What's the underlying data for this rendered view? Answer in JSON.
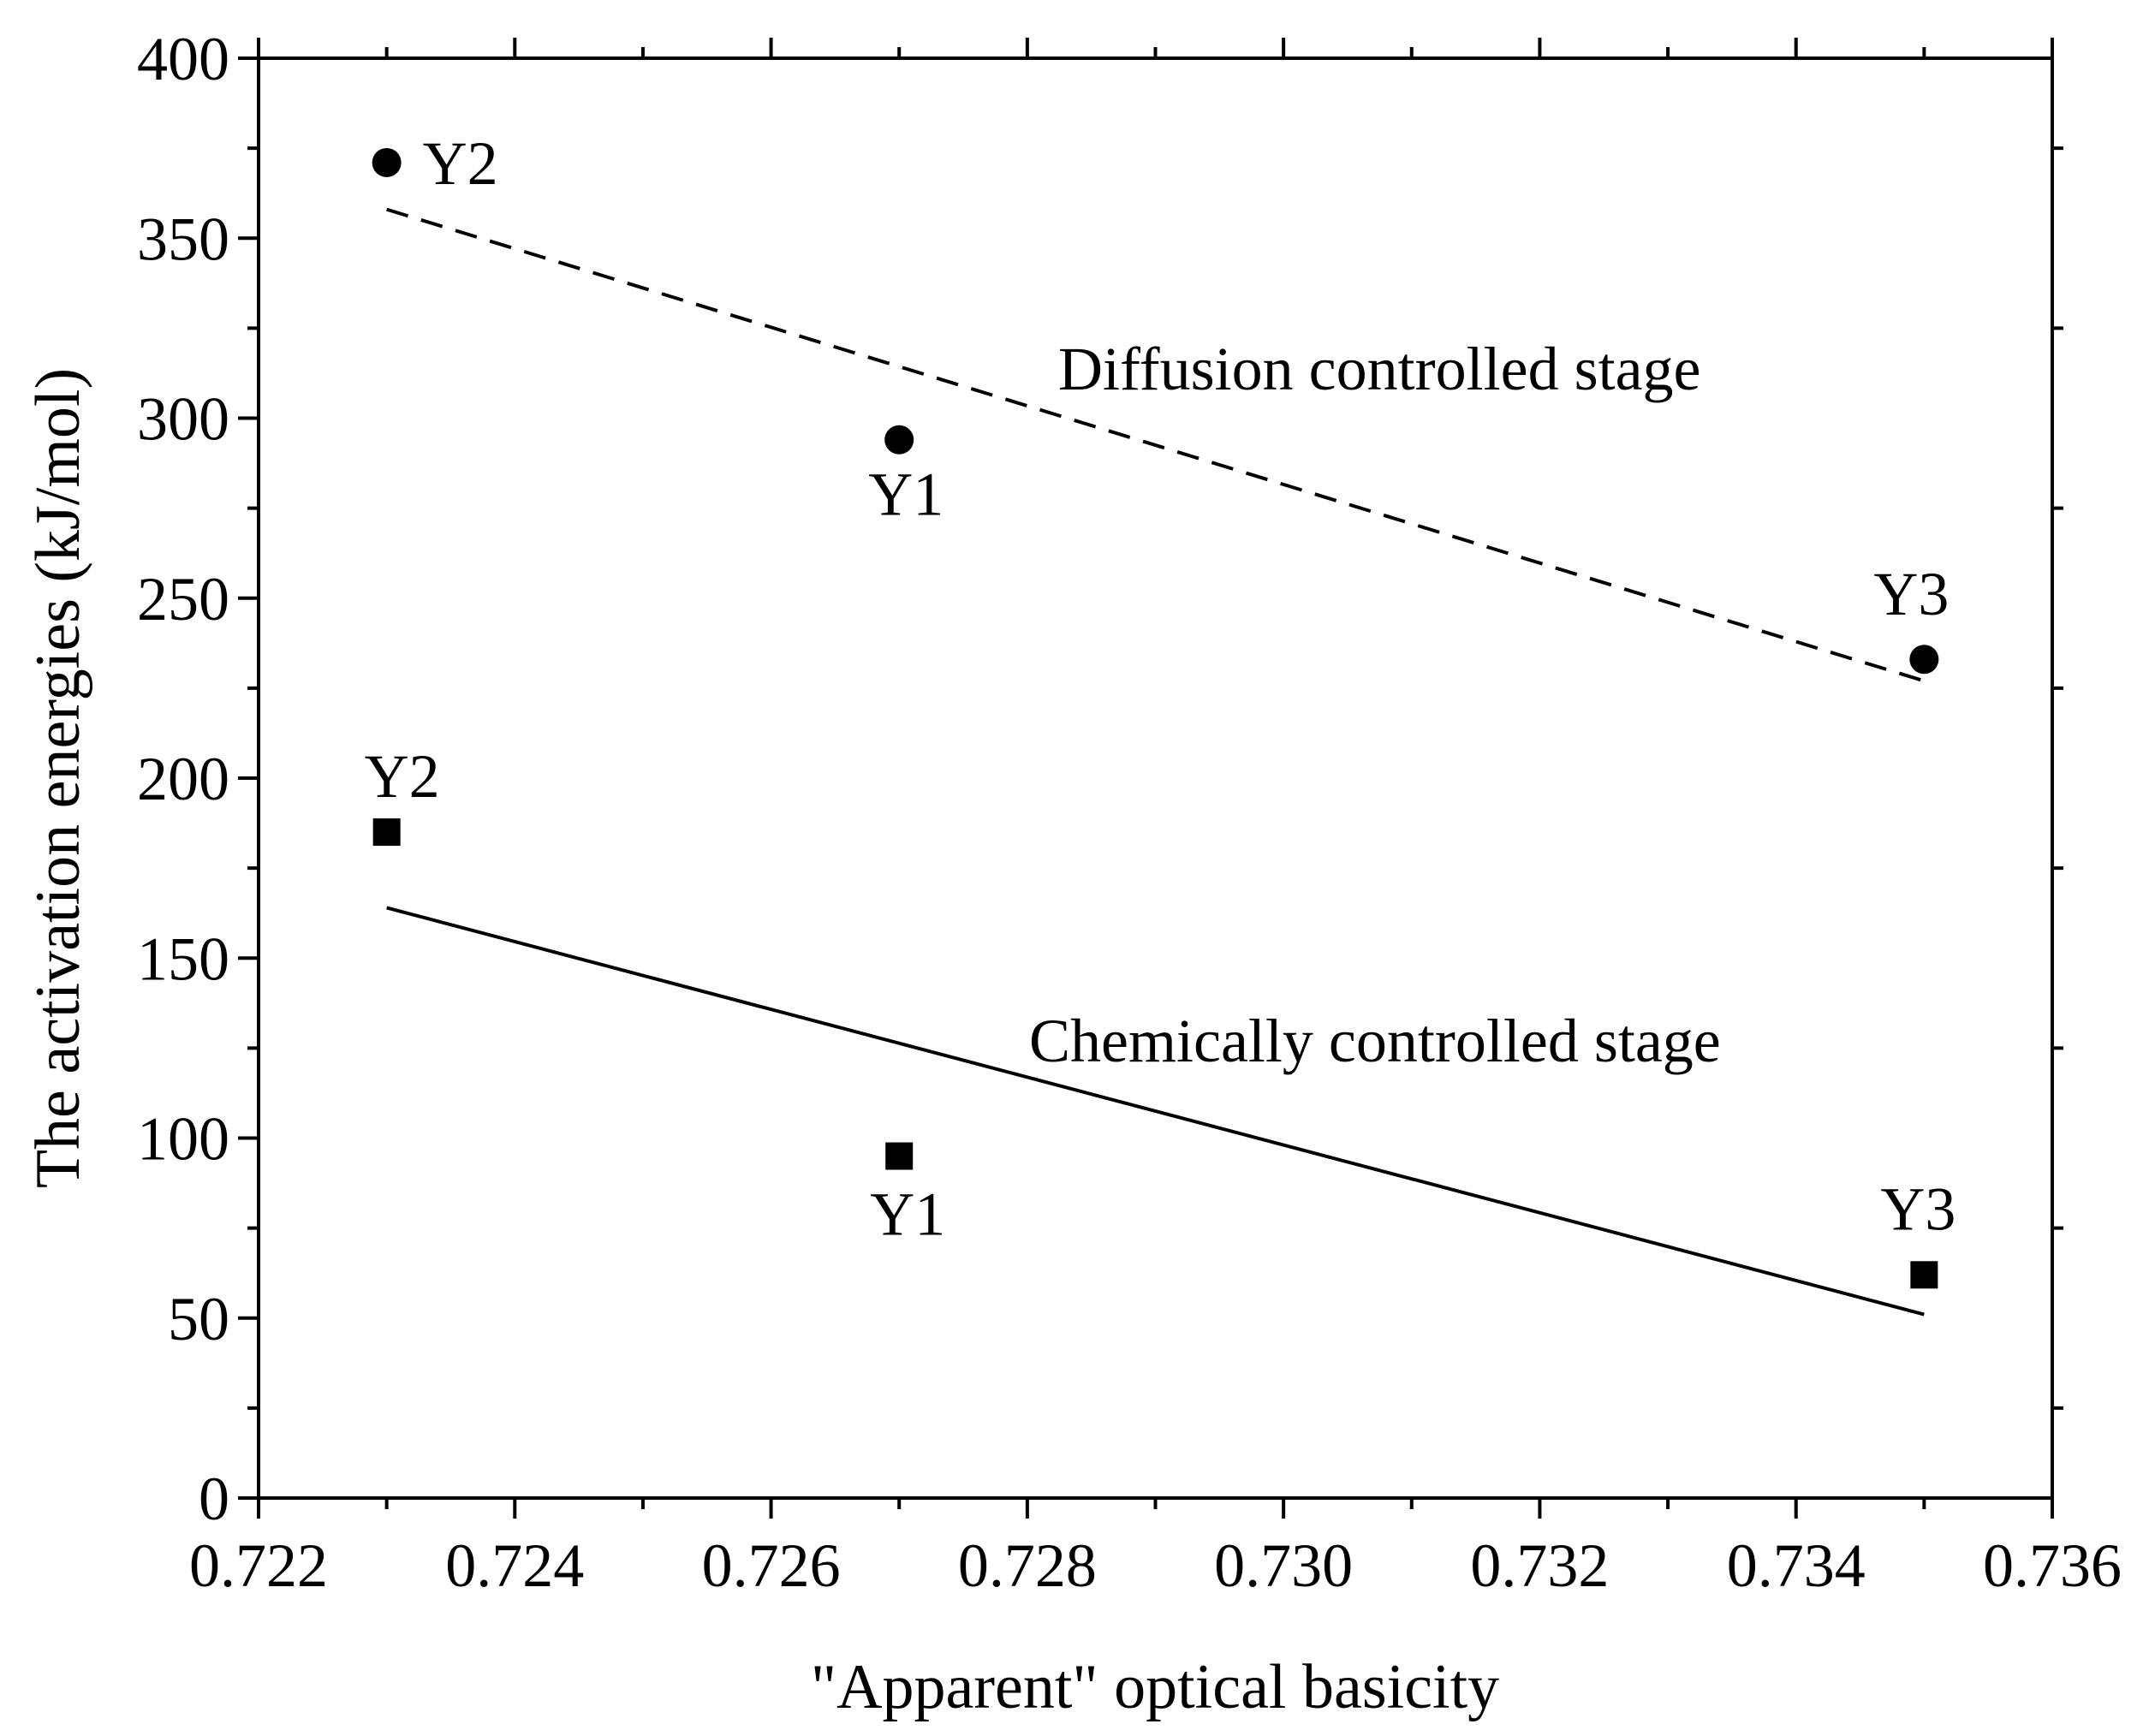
{
  "chart_data": {
    "type": "scatter",
    "title": "",
    "xlabel": "\"Apparent\" optical basicity",
    "ylabel": "The activation energies (kJ/mol)",
    "xlim": [
      0.722,
      0.736
    ],
    "ylim": [
      0,
      400
    ],
    "x_ticks": [
      "0.722",
      "0.724",
      "0.726",
      "0.728",
      "0.730",
      "0.732",
      "0.734",
      "0.736"
    ],
    "y_ticks": [
      "0",
      "50",
      "100",
      "150",
      "200",
      "250",
      "300",
      "350",
      "400"
    ],
    "grid": false,
    "series": [
      {
        "name": "Diffusion controlled stage",
        "marker": "circle",
        "fit_line": "dashed",
        "points": [
          {
            "label": "Y2",
            "x": 0.723,
            "y": 371
          },
          {
            "label": "Y1",
            "x": 0.727,
            "y": 294
          },
          {
            "label": "Y3",
            "x": 0.735,
            "y": 233
          }
        ],
        "fit": {
          "x": [
            0.723,
            0.735
          ],
          "y": [
            358,
            227
          ]
        }
      },
      {
        "name": "Chemically controlled stage",
        "marker": "square",
        "fit_line": "solid",
        "points": [
          {
            "label": "Y2",
            "x": 0.723,
            "y": 185
          },
          {
            "label": "Y1",
            "x": 0.727,
            "y": 95
          },
          {
            "label": "Y3",
            "x": 0.735,
            "y": 62
          }
        ],
        "fit": {
          "x": [
            0.723,
            0.735
          ],
          "y": [
            164,
            51
          ]
        }
      }
    ]
  }
}
